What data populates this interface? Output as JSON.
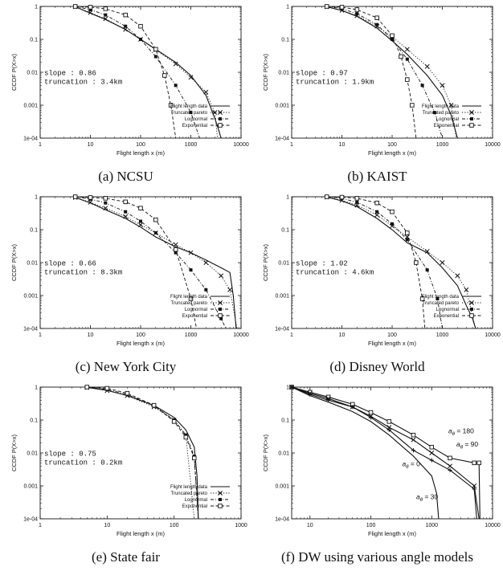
{
  "chart_data": [
    {
      "type": "line",
      "caption": "(a) NCSU",
      "xlabel": "Flight length x (m)",
      "ylabel": "CCDF P(X>x)",
      "xscale": "log",
      "yscale": "log",
      "xlim": [
        1,
        10000
      ],
      "ylim": [
        0.0001,
        1
      ],
      "xticks": [
        "1",
        "10",
        "100",
        "1000",
        "10000"
      ],
      "yticks": [
        "1",
        "0.1",
        "0.01",
        "0.001",
        "1e-04"
      ],
      "annotations": [
        "slope : 0.86",
        "truncation : 3.4km"
      ],
      "legend_position": "bottom-right",
      "series": [
        {
          "name": "Flight length data",
          "style": "solid",
          "marker": "none",
          "x": [
            5,
            10,
            20,
            50,
            100,
            200,
            500,
            1000,
            2000,
            3000,
            3500,
            4000
          ],
          "y": [
            0.98,
            0.62,
            0.4,
            0.2,
            0.1,
            0.05,
            0.02,
            0.008,
            0.002,
            0.0004,
            0.0002,
            0.0001
          ]
        },
        {
          "name": "Truncated pareto",
          "style": "dotted",
          "marker": "x",
          "x": [
            5,
            10,
            20,
            50,
            100,
            200,
            500,
            1000,
            2000,
            3000,
            3400
          ],
          "y": [
            0.98,
            0.65,
            0.42,
            0.2,
            0.1,
            0.048,
            0.018,
            0.007,
            0.0025,
            0.0006,
            0.0001
          ]
        },
        {
          "name": "Lognormal",
          "style": "dash-dot",
          "marker": "filled-square",
          "x": [
            5,
            10,
            20,
            50,
            100,
            200,
            500,
            1000,
            1500
          ],
          "y": [
            1,
            0.8,
            0.55,
            0.25,
            0.1,
            0.03,
            0.004,
            0.0006,
            0.0001
          ]
        },
        {
          "name": "Exponential",
          "style": "dashed",
          "marker": "open-square",
          "x": [
            5,
            10,
            20,
            50,
            100,
            200,
            300,
            400,
            500
          ],
          "y": [
            1,
            0.95,
            0.85,
            0.55,
            0.25,
            0.05,
            0.008,
            0.001,
            0.0001
          ]
        }
      ]
    },
    {
      "type": "line",
      "caption": "(b) KAIST",
      "xlabel": "Flight length x (m)",
      "ylabel": "CCDF P(X>x)",
      "xscale": "log",
      "yscale": "log",
      "xlim": [
        1,
        10000
      ],
      "ylim": [
        0.0001,
        1
      ],
      "xticks": [
        "1",
        "10",
        "100",
        "1000",
        "10000"
      ],
      "yticks": [
        "1",
        "0.1",
        "0.01",
        "0.001",
        "1e-04"
      ],
      "annotations": [
        "slope : 0.97",
        "truncation : 1.9km"
      ],
      "legend_position": "bottom-right",
      "series": [
        {
          "name": "Flight length data",
          "style": "solid",
          "marker": "none",
          "x": [
            5,
            10,
            20,
            50,
            100,
            200,
            500,
            1000,
            1500,
            2000
          ],
          "y": [
            0.97,
            0.75,
            0.5,
            0.22,
            0.09,
            0.035,
            0.008,
            0.002,
            0.0005,
            0.0001
          ]
        },
        {
          "name": "Truncated pareto",
          "style": "dotted",
          "marker": "x",
          "x": [
            5,
            10,
            20,
            50,
            100,
            200,
            500,
            1000,
            1500,
            1900
          ],
          "y": [
            0.98,
            0.76,
            0.52,
            0.25,
            0.12,
            0.05,
            0.015,
            0.004,
            0.001,
            0.0001
          ]
        },
        {
          "name": "Lognormal",
          "style": "dash-dot",
          "marker": "filled-square",
          "x": [
            5,
            10,
            20,
            50,
            100,
            200,
            400,
            700,
            1000
          ],
          "y": [
            1,
            0.85,
            0.6,
            0.28,
            0.1,
            0.025,
            0.004,
            0.0006,
            0.0001
          ]
        },
        {
          "name": "Exponential",
          "style": "dashed",
          "marker": "open-square",
          "x": [
            5,
            10,
            20,
            50,
            100,
            150,
            200,
            250,
            300
          ],
          "y": [
            1,
            0.95,
            0.8,
            0.45,
            0.13,
            0.03,
            0.006,
            0.001,
            0.0001
          ]
        }
      ]
    },
    {
      "type": "line",
      "caption": "(c) New York City",
      "xlabel": "Flight length x (m)",
      "ylabel": "CCDF P(X>x)",
      "xscale": "log",
      "yscale": "log",
      "xlim": [
        1,
        10000
      ],
      "ylim": [
        0.0001,
        1
      ],
      "xticks": [
        "1",
        "10",
        "100",
        "1000",
        "10000"
      ],
      "yticks": [
        "1",
        "0.1",
        "0.01",
        "0.001",
        "1e-04"
      ],
      "annotations": [
        "slope : 0.66",
        "truncation : 8.3km"
      ],
      "legend_position": "bottom-right",
      "series": [
        {
          "name": "Flight length data",
          "style": "solid",
          "marker": "none",
          "x": [
            5,
            10,
            20,
            50,
            100,
            200,
            500,
            1000,
            2000,
            4000,
            6000,
            7000,
            8000
          ],
          "y": [
            0.95,
            0.65,
            0.4,
            0.22,
            0.12,
            0.06,
            0.03,
            0.02,
            0.012,
            0.007,
            0.005,
            0.001,
            0.0001
          ]
        },
        {
          "name": "Truncated pareto",
          "style": "dotted",
          "marker": "x",
          "x": [
            5,
            10,
            20,
            50,
            100,
            200,
            500,
            1000,
            2000,
            4000,
            6000,
            8300
          ],
          "y": [
            0.95,
            0.68,
            0.45,
            0.25,
            0.14,
            0.08,
            0.035,
            0.02,
            0.01,
            0.004,
            0.0015,
            0.0001
          ]
        },
        {
          "name": "Lognormal",
          "style": "dash-dot",
          "marker": "filled-square",
          "x": [
            5,
            10,
            20,
            50,
            100,
            200,
            500,
            1000,
            2000,
            4000,
            5000
          ],
          "y": [
            1,
            0.85,
            0.65,
            0.35,
            0.18,
            0.08,
            0.02,
            0.006,
            0.0015,
            0.0002,
            0.0001
          ]
        },
        {
          "name": "Exponential",
          "style": "dashed",
          "marker": "open-square",
          "x": [
            5,
            10,
            20,
            50,
            100,
            200,
            500,
            1000,
            1300
          ],
          "y": [
            1,
            0.95,
            0.9,
            0.7,
            0.45,
            0.2,
            0.025,
            0.0008,
            0.0001
          ]
        }
      ]
    },
    {
      "type": "line",
      "caption": "(d) Disney World",
      "xlabel": "Flight length x (m)",
      "ylabel": "CCDF P(X>x)",
      "xscale": "log",
      "yscale": "log",
      "xlim": [
        1,
        10000
      ],
      "ylim": [
        0.0001,
        1
      ],
      "xticks": [
        "1",
        "10",
        "100",
        "1000",
        "10000"
      ],
      "yticks": [
        "1",
        "0.1",
        "0.01",
        "0.001",
        "1e-04"
      ],
      "annotations": [
        "slope : 1.02",
        "truncation : 4.6km"
      ],
      "legend_position": "bottom-right",
      "series": [
        {
          "name": "Flight length data",
          "style": "solid",
          "marker": "none",
          "x": [
            5,
            10,
            20,
            50,
            100,
            200,
            500,
            1000,
            2000,
            3000,
            4000,
            4600
          ],
          "y": [
            0.97,
            0.75,
            0.5,
            0.22,
            0.1,
            0.04,
            0.02,
            0.007,
            0.002,
            0.0005,
            0.0002,
            0.0001
          ]
        },
        {
          "name": "Truncated pareto",
          "style": "dotted",
          "marker": "x",
          "x": [
            5,
            10,
            20,
            50,
            100,
            200,
            500,
            1000,
            2000,
            3000,
            4600
          ],
          "y": [
            0.98,
            0.78,
            0.55,
            0.28,
            0.13,
            0.06,
            0.022,
            0.01,
            0.004,
            0.0015,
            0.0001
          ]
        },
        {
          "name": "Lognormal",
          "style": "dash-dot",
          "marker": "filled-square",
          "x": [
            5,
            10,
            20,
            50,
            100,
            200,
            500,
            800,
            1000
          ],
          "y": [
            1,
            0.9,
            0.68,
            0.35,
            0.15,
            0.05,
            0.006,
            0.0008,
            0.0001
          ]
        },
        {
          "name": "Exponential",
          "style": "dashed",
          "marker": "open-square",
          "x": [
            5,
            10,
            20,
            50,
            100,
            200,
            300,
            400,
            450
          ],
          "y": [
            1,
            0.97,
            0.9,
            0.65,
            0.35,
            0.08,
            0.01,
            0.0008,
            0.0001
          ]
        }
      ]
    },
    {
      "type": "line",
      "caption": "(e) State fair",
      "xlabel": "Flight length x (m)",
      "ylabel": "CCDF P(X>x)",
      "xscale": "log",
      "yscale": "log",
      "xlim": [
        1,
        1000
      ],
      "ylim": [
        0.0001,
        1
      ],
      "xticks": [
        "1",
        "10",
        "100",
        "1000"
      ],
      "yticks": [
        "1",
        "0.1",
        "0.01",
        "0.001",
        "1e-04"
      ],
      "annotations": [
        "slope : 0.75",
        "truncation : 0.2km"
      ],
      "legend_position": "bottom-right",
      "series": [
        {
          "name": "Flight length data",
          "style": "solid",
          "marker": "none",
          "x": [
            5,
            10,
            20,
            50,
            100,
            150,
            200,
            220,
            230
          ],
          "y": [
            0.98,
            0.8,
            0.55,
            0.28,
            0.12,
            0.05,
            0.015,
            0.002,
            0.0001
          ]
        },
        {
          "name": "Truncated pareto",
          "style": "dotted",
          "marker": "x",
          "x": [
            5,
            10,
            20,
            50,
            100,
            150,
            200
          ],
          "y": [
            0.97,
            0.78,
            0.55,
            0.25,
            0.1,
            0.035,
            0.0001
          ]
        },
        {
          "name": "Lognormal",
          "style": "dash-dot",
          "marker": "filled-square",
          "x": [
            5,
            10,
            20,
            50,
            100,
            150,
            200,
            230
          ],
          "y": [
            1,
            0.85,
            0.6,
            0.27,
            0.1,
            0.035,
            0.008,
            0.0001
          ]
        },
        {
          "name": "Exponential",
          "style": "dashed",
          "marker": "open-square",
          "x": [
            5,
            10,
            20,
            50,
            100,
            150,
            200,
            230
          ],
          "y": [
            1,
            0.92,
            0.65,
            0.28,
            0.09,
            0.03,
            0.007,
            0.0001
          ]
        }
      ]
    },
    {
      "type": "line",
      "caption": "(f) DW using various angle models",
      "xlabel": "Flight length x (m)",
      "ylabel": "CCDF P(X>x)",
      "xscale": "log",
      "yscale": "log",
      "xlim": [
        5,
        10000
      ],
      "ylim": [
        0.0001,
        1
      ],
      "xticks": [
        "10",
        "100",
        "1000",
        "10000"
      ],
      "yticks": [
        "1",
        "0.1",
        "0.01",
        "0.001",
        "1e-04"
      ],
      "annotations": [],
      "legend_position": "none",
      "series": [
        {
          "name": "180",
          "label_prefix": "a",
          "label_subscript": "θ",
          "label_suffix": " = 180",
          "style": "solid",
          "marker": "open-square",
          "x": [
            5,
            10,
            20,
            50,
            100,
            200,
            500,
            1000,
            2000,
            5000,
            6000,
            6200
          ],
          "y": [
            1,
            0.7,
            0.5,
            0.3,
            0.17,
            0.09,
            0.035,
            0.015,
            0.007,
            0.005,
            0.005,
            0.0001
          ]
        },
        {
          "name": "90",
          "label_prefix": "a",
          "label_subscript": "θ",
          "label_suffix": " = 90",
          "style": "solid",
          "marker": "x",
          "x": [
            5,
            10,
            20,
            50,
            100,
            200,
            500,
            1000,
            2000,
            5000,
            6000
          ],
          "y": [
            1,
            0.65,
            0.45,
            0.25,
            0.13,
            0.06,
            0.025,
            0.01,
            0.004,
            0.001,
            0.0001
          ]
        },
        {
          "name": "0",
          "label_prefix": "a",
          "label_subscript": "θ",
          "label_suffix": " = 0",
          "style": "solid",
          "marker": "plus",
          "x": [
            5,
            10,
            20,
            50,
            100,
            200,
            500,
            1000,
            2000,
            5000,
            5500
          ],
          "y": [
            1,
            0.6,
            0.4,
            0.25,
            0.12,
            0.05,
            0.012,
            0.006,
            0.003,
            0.0008,
            0.0001
          ]
        },
        {
          "name": "30",
          "label_prefix": "a",
          "label_subscript": "θ",
          "label_suffix": " = 30",
          "style": "solid",
          "marker": "none",
          "x": [
            5,
            10,
            20,
            50,
            100,
            200,
            500,
            1000,
            1200,
            1300
          ],
          "y": [
            1,
            0.55,
            0.35,
            0.18,
            0.09,
            0.035,
            0.008,
            0.002,
            0.0006,
            0.0001
          ]
        }
      ]
    }
  ]
}
